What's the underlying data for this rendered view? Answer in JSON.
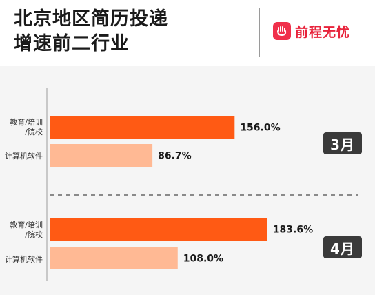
{
  "header": {
    "title_line1": "北京地区简历投递",
    "title_line2": "增速前二行业",
    "brand_name": "前程无忧"
  },
  "colors": {
    "primary_bar": "#ff5a14",
    "secondary_bar": "#ffb994",
    "badge": "#3a3a3a",
    "brand": "#e8243c"
  },
  "chart_data": {
    "type": "bar",
    "orientation": "horizontal",
    "categories": [
      "教育/培训/院校",
      "计算机软件"
    ],
    "groups": [
      {
        "label": "3月",
        "values": [
          156.0,
          86.7
        ],
        "value_labels": [
          "156.0%",
          "86.7%"
        ]
      },
      {
        "label": "4月",
        "values": [
          183.6,
          108.0
        ],
        "value_labels": [
          "183.6%",
          "108.0%"
        ]
      }
    ],
    "unit": "%",
    "xlim": [
      0,
      250
    ],
    "title": "",
    "xlabel": "",
    "ylabel": ""
  },
  "labels": {
    "edu_line1": "教育/培训",
    "edu_line2": "/院校",
    "software": "计算机软件"
  }
}
